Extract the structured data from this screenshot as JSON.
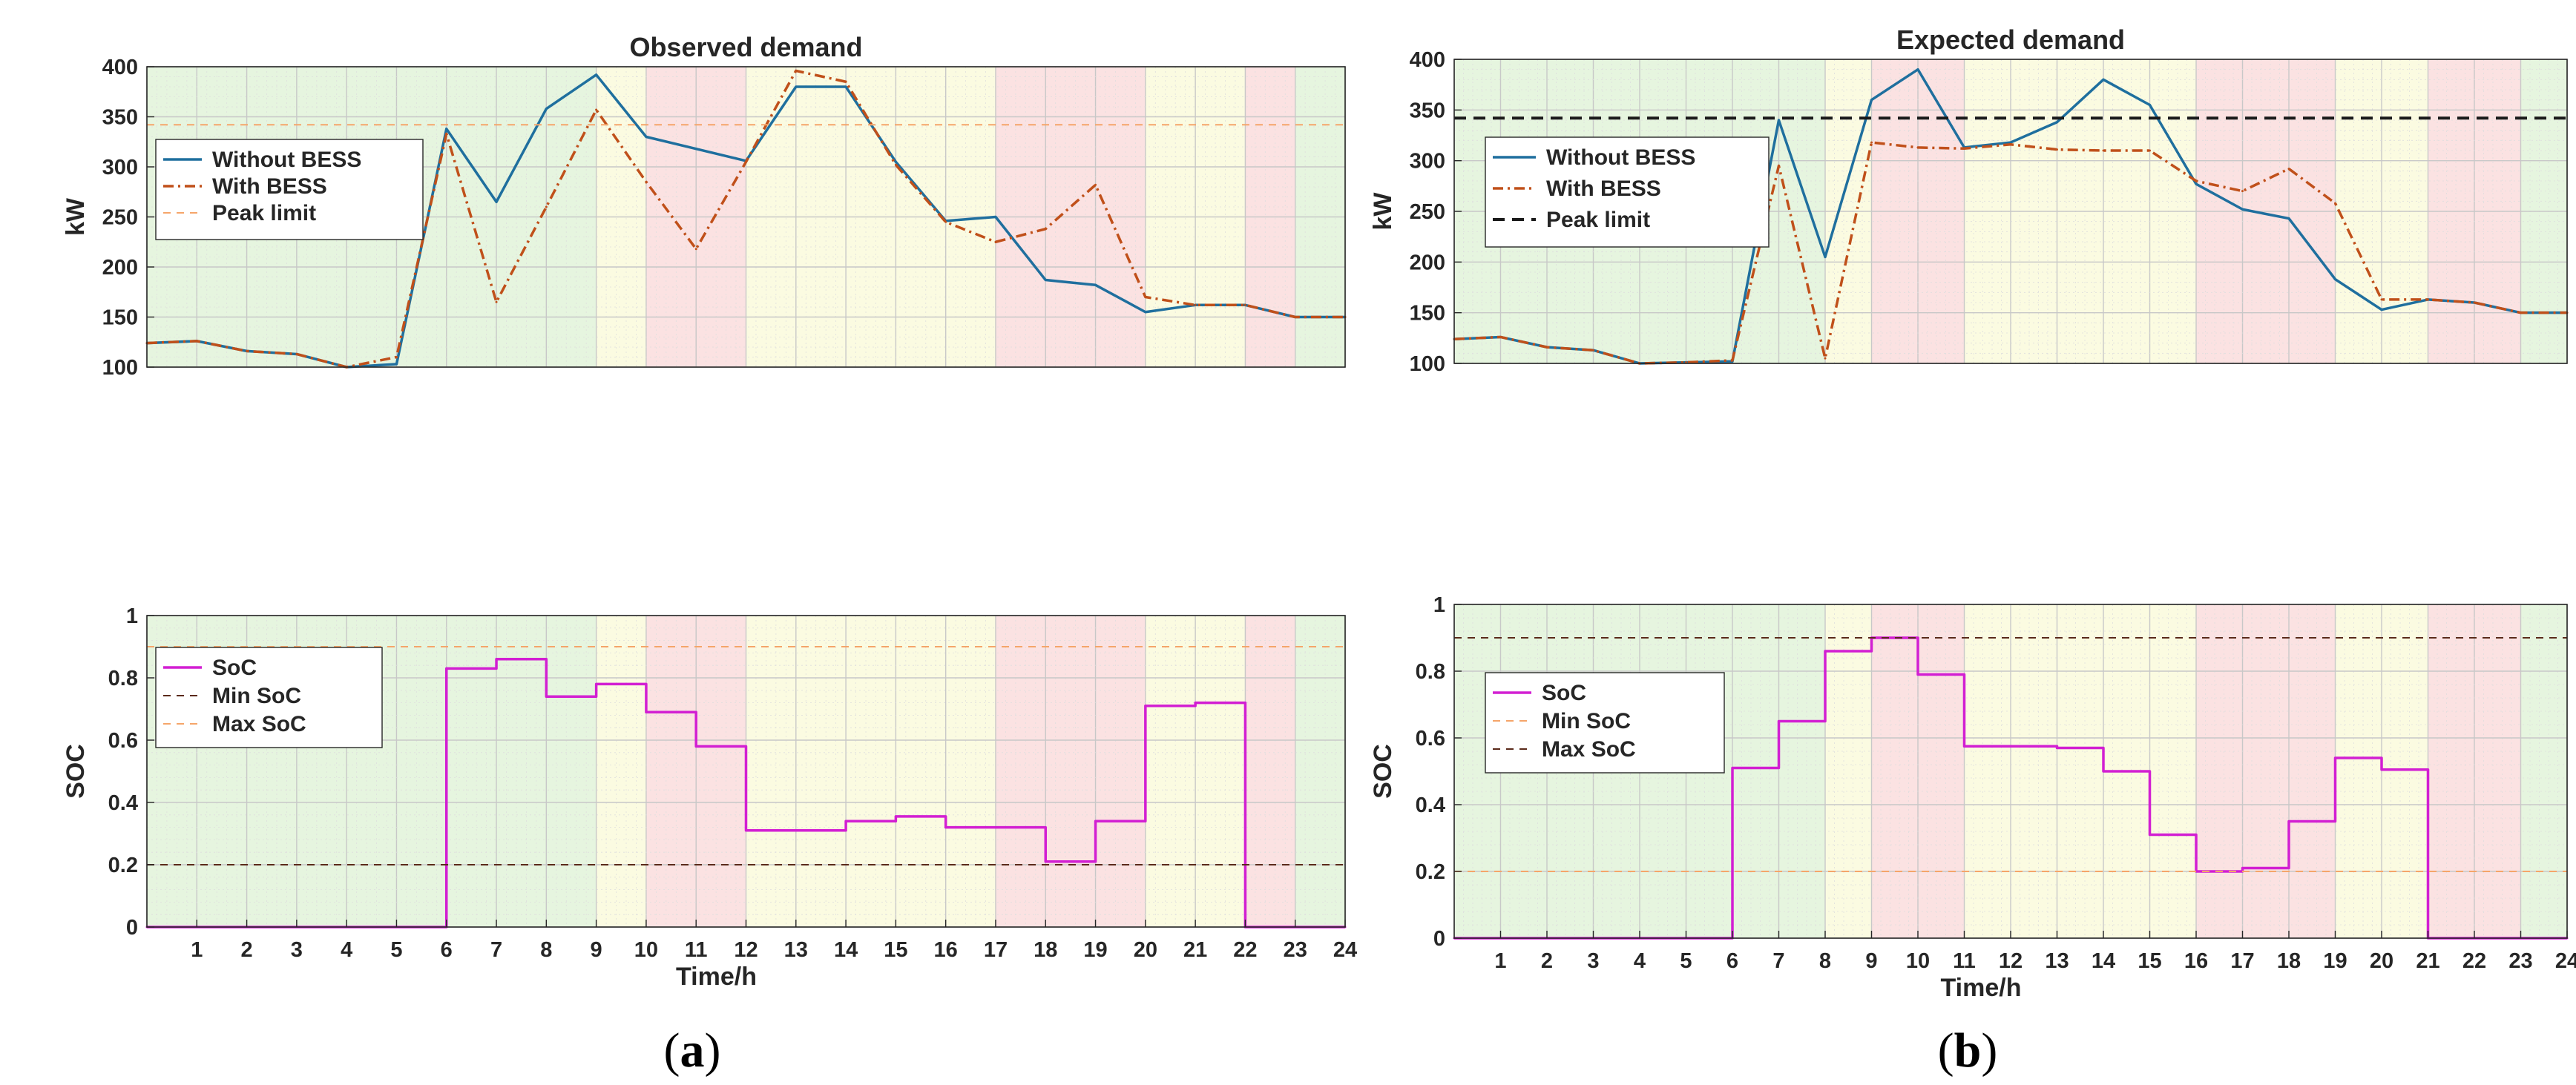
{
  "colors": {
    "without": "#1f6f9e",
    "with": "#c0501a",
    "peak": "#1a1a1a",
    "soc": "#d21fd2",
    "minsoc": "#5a2a1a",
    "maxsoc": "#f5a56a",
    "band_green": "#e6f5df",
    "band_yellow": "#fbfbe1",
    "band_red": "#fbe2e2"
  },
  "chart_data": [
    {
      "id": "a_demand",
      "type": "line",
      "title": "Observed demand",
      "xlabel": "",
      "ylabel": "kW",
      "xlim": [
        0,
        24
      ],
      "ylim": [
        100,
        400
      ],
      "yticks": [
        100,
        150,
        200,
        250,
        300,
        350,
        400
      ],
      "xticks": [],
      "bands": [
        "green",
        "green",
        "green",
        "green",
        "green",
        "green",
        "green",
        "green",
        "green",
        "yellow",
        "red",
        "red",
        "yellow",
        "yellow",
        "yellow",
        "yellow",
        "yellow",
        "red",
        "red",
        "red",
        "yellow",
        "yellow",
        "red",
        "green"
      ],
      "series": [
        {
          "name": "Without BESS",
          "style": "solid",
          "color_key": "without",
          "x": [
            0,
            1,
            2,
            3,
            4,
            5,
            6,
            7,
            8,
            9,
            10,
            11,
            12,
            13,
            14,
            15,
            16,
            17,
            18,
            19,
            20,
            21,
            22,
            23,
            24
          ],
          "values": [
            124,
            126,
            116,
            113,
            100,
            103,
            338,
            265,
            358,
            392,
            330,
            318,
            306,
            380,
            380,
            305,
            246,
            250,
            187,
            182,
            155,
            162,
            162,
            150,
            150
          ]
        },
        {
          "name": "With BESS",
          "style": "dashdot",
          "color_key": "with",
          "x": [
            0,
            1,
            2,
            3,
            4,
            5,
            6,
            7,
            8,
            9,
            10,
            11,
            12,
            13,
            14,
            15,
            16,
            17,
            18,
            19,
            20,
            21,
            22,
            23,
            24
          ],
          "values": [
            124,
            126,
            116,
            113,
            100,
            110,
            333,
            165,
            260,
            357,
            285,
            218,
            305,
            396,
            385,
            302,
            245,
            225,
            238,
            282,
            170,
            162,
            162,
            150,
            150
          ]
        },
        {
          "name": "Peak limit",
          "style": "dashed-thin",
          "color_key": "maxsoc",
          "x": [
            0,
            24
          ],
          "values": [
            342,
            342
          ]
        }
      ],
      "legend": [
        "Without BESS",
        "With BESS",
        "Peak limit"
      ],
      "legend_position": "top-left"
    },
    {
      "id": "a_soc",
      "type": "line",
      "title": "",
      "xlabel": "Time/h",
      "ylabel": "SOC",
      "xlim": [
        0,
        24
      ],
      "ylim": [
        0,
        1
      ],
      "yticks": [
        0,
        0.2,
        0.4,
        0.6,
        0.8,
        1
      ],
      "ytick_labels": [
        "0",
        "0.2",
        "0.4",
        "0.6",
        "0.8",
        "1"
      ],
      "xticks": [
        1,
        2,
        3,
        4,
        5,
        6,
        7,
        8,
        9,
        10,
        11,
        12,
        13,
        14,
        15,
        16,
        17,
        18,
        19,
        20,
        21,
        22,
        23,
        24
      ],
      "bands": [
        "green",
        "green",
        "green",
        "green",
        "green",
        "green",
        "green",
        "green",
        "green",
        "yellow",
        "red",
        "red",
        "yellow",
        "yellow",
        "yellow",
        "yellow",
        "yellow",
        "red",
        "red",
        "red",
        "yellow",
        "yellow",
        "red",
        "green"
      ],
      "series": [
        {
          "name": "SoC",
          "style": "step",
          "color_key": "soc",
          "x": [
            0,
            1,
            2,
            3,
            4,
            5,
            6,
            7,
            8,
            9,
            10,
            11,
            12,
            13,
            14,
            15,
            16,
            17,
            18,
            19,
            20,
            21,
            22,
            23,
            24
          ],
          "values": [
            0,
            0,
            0,
            0,
            0,
            0,
            0.83,
            0.86,
            0.74,
            0.78,
            0.69,
            0.58,
            0.31,
            0.31,
            0.34,
            0.355,
            0.32,
            0.32,
            0.21,
            0.34,
            0.71,
            0.72,
            0,
            0,
            0
          ]
        },
        {
          "name": "Min SoC",
          "style": "dashed-thin",
          "color_key": "minsoc",
          "x": [
            0,
            24
          ],
          "values": [
            0.2,
            0.2
          ]
        },
        {
          "name": "Max SoC",
          "style": "dashed-thin",
          "color_key": "maxsoc",
          "x": [
            0,
            24
          ],
          "values": [
            0.9,
            0.9
          ]
        }
      ],
      "legend": [
        "SoC",
        "Min SoC",
        "Max SoC"
      ],
      "legend_position": "top-left"
    },
    {
      "id": "b_demand",
      "type": "line",
      "title": "Expected demand",
      "xlabel": "",
      "ylabel": "kW",
      "xlim": [
        0,
        24
      ],
      "ylim": [
        100,
        400
      ],
      "yticks": [
        100,
        150,
        200,
        250,
        300,
        350,
        400
      ],
      "xticks": [],
      "bands": [
        "green",
        "green",
        "green",
        "green",
        "green",
        "green",
        "green",
        "green",
        "yellow",
        "red",
        "red",
        "yellow",
        "yellow",
        "yellow",
        "yellow",
        "yellow",
        "red",
        "red",
        "red",
        "yellow",
        "yellow",
        "red",
        "red",
        "green"
      ],
      "series": [
        {
          "name": "Without BESS",
          "style": "solid",
          "color_key": "without",
          "x": [
            0,
            1,
            2,
            3,
            4,
            5,
            6,
            7,
            8,
            9,
            10,
            11,
            12,
            13,
            14,
            15,
            16,
            17,
            18,
            19,
            20,
            21,
            22,
            23,
            24
          ],
          "values": [
            124,
            126,
            116,
            113,
            100,
            101,
            102,
            340,
            205,
            360,
            390,
            313,
            318,
            338,
            380,
            355,
            277,
            252,
            243,
            183,
            153,
            163,
            160,
            150,
            150
          ]
        },
        {
          "name": "With BESS",
          "style": "dashdot",
          "color_key": "with",
          "x": [
            0,
            1,
            2,
            3,
            4,
            5,
            6,
            7,
            8,
            9,
            10,
            11,
            12,
            13,
            14,
            15,
            16,
            17,
            18,
            19,
            20,
            21,
            22,
            23,
            24
          ],
          "values": [
            124,
            126,
            116,
            113,
            100,
            101,
            103,
            295,
            105,
            318,
            313,
            312,
            316,
            311,
            310,
            310,
            280,
            270,
            292,
            258,
            163,
            163,
            160,
            150,
            150
          ]
        },
        {
          "name": "Peak limit",
          "style": "dashed-thick",
          "color_key": "peak",
          "x": [
            0,
            24
          ],
          "values": [
            342,
            342
          ]
        }
      ],
      "legend": [
        "Without BESS",
        "With BESS",
        "Peak limit"
      ],
      "legend_position": "top-left"
    },
    {
      "id": "b_soc",
      "type": "line",
      "title": "",
      "xlabel": "Time/h",
      "ylabel": "SOC",
      "xlim": [
        0,
        24
      ],
      "ylim": [
        0,
        1
      ],
      "yticks": [
        0,
        0.2,
        0.4,
        0.6,
        0.8,
        1
      ],
      "ytick_labels": [
        "0",
        "0.2",
        "0.4",
        "0.6",
        "0.8",
        "1"
      ],
      "xticks": [
        1,
        2,
        3,
        4,
        5,
        6,
        7,
        8,
        9,
        10,
        11,
        12,
        13,
        14,
        15,
        16,
        17,
        18,
        19,
        20,
        21,
        22,
        23,
        24
      ],
      "bands": [
        "green",
        "green",
        "green",
        "green",
        "green",
        "green",
        "green",
        "green",
        "yellow",
        "red",
        "red",
        "yellow",
        "yellow",
        "yellow",
        "yellow",
        "yellow",
        "red",
        "red",
        "red",
        "yellow",
        "yellow",
        "red",
        "red",
        "green"
      ],
      "series": [
        {
          "name": "SoC",
          "style": "step",
          "color_key": "soc",
          "x": [
            0,
            1,
            2,
            3,
            4,
            5,
            6,
            7,
            8,
            9,
            10,
            11,
            12,
            13,
            14,
            15,
            16,
            17,
            18,
            19,
            20,
            21,
            22,
            23,
            24
          ],
          "values": [
            0,
            0,
            0,
            0,
            0,
            0,
            0.51,
            0.65,
            0.86,
            0.9,
            0.79,
            0.575,
            0.575,
            0.57,
            0.5,
            0.31,
            0.2,
            0.21,
            0.35,
            0.54,
            0.505,
            0,
            0,
            0,
            0
          ]
        },
        {
          "name": "Min SoC",
          "style": "dashed-thin",
          "color_key": "maxsoc",
          "x": [
            0,
            24
          ],
          "values": [
            0.2,
            0.2
          ]
        },
        {
          "name": "Max SoC",
          "style": "dashed-thin",
          "color_key": "minsoc",
          "x": [
            0,
            24
          ],
          "values": [
            0.9,
            0.9
          ]
        }
      ],
      "legend": [
        "SoC",
        "Min SoC",
        "Max SoC"
      ],
      "legend_position": "top-left"
    }
  ],
  "captions": {
    "a": {
      "open": "(",
      "letter": "a",
      "close": ")"
    },
    "b": {
      "open": "(",
      "letter": "b",
      "close": ")"
    }
  }
}
